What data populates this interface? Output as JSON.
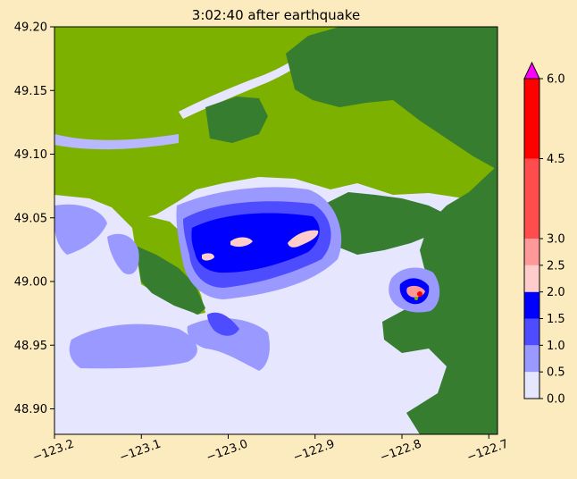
{
  "chart_data": {
    "type": "heatmap",
    "title": "3:02:40 after earthquake",
    "xlabel": "",
    "ylabel": "",
    "xlim": [
      -123.2,
      -122.69
    ],
    "ylim": [
      48.88,
      49.2
    ],
    "x_ticks": [
      {
        "value": -123.2,
        "label": "−123.2"
      },
      {
        "value": -123.1,
        "label": "−123.1"
      },
      {
        "value": -123.0,
        "label": "−123.0"
      },
      {
        "value": -122.9,
        "label": "−122.9"
      },
      {
        "value": -122.8,
        "label": "−122.8"
      },
      {
        "value": -122.7,
        "label": "−122.7"
      }
    ],
    "y_ticks": [
      {
        "value": 49.2,
        "label": "49.20"
      },
      {
        "value": 49.15,
        "label": "49.15"
      },
      {
        "value": 49.1,
        "label": "49.10"
      },
      {
        "value": 49.05,
        "label": "49.05"
      },
      {
        "value": 49.0,
        "label": "49.00"
      },
      {
        "value": 48.95,
        "label": "48.95"
      },
      {
        "value": 48.9,
        "label": "48.90"
      }
    ],
    "colorbar": {
      "min": 0.0,
      "max": 6.0,
      "extend": "max",
      "extend_color": "#ff00ff",
      "levels": [
        {
          "from": 0.0,
          "to": 0.5,
          "color": "#e6e6ff"
        },
        {
          "from": 0.5,
          "to": 1.0,
          "color": "#9999ff"
        },
        {
          "from": 1.0,
          "to": 1.5,
          "color": "#4d4dff"
        },
        {
          "from": 1.5,
          "to": 2.0,
          "color": "#0000ff"
        },
        {
          "from": 2.0,
          "to": 2.5,
          "color": "#ffcccc"
        },
        {
          "from": 2.5,
          "to": 3.0,
          "color": "#ff9999"
        },
        {
          "from": 3.0,
          "to": 4.5,
          "color": "#ff4d4d"
        },
        {
          "from": 4.5,
          "to": 6.0,
          "color": "#ff0000"
        }
      ],
      "tick_labels": [
        {
          "value": 0.0,
          "label": "0.0"
        },
        {
          "value": 0.5,
          "label": "0.5"
        },
        {
          "value": 1.0,
          "label": "1.0"
        },
        {
          "value": 1.5,
          "label": "1.5"
        },
        {
          "value": 2.0,
          "label": "2.0"
        },
        {
          "value": 2.5,
          "label": "2.5"
        },
        {
          "value": 3.0,
          "label": "3.0"
        },
        {
          "value": 4.5,
          "label": "4.5"
        },
        {
          "value": 6.0,
          "label": "6.0"
        }
      ]
    },
    "land_colors": {
      "lowland": "#7db100",
      "highland": "#367d30"
    },
    "grid": false
  }
}
